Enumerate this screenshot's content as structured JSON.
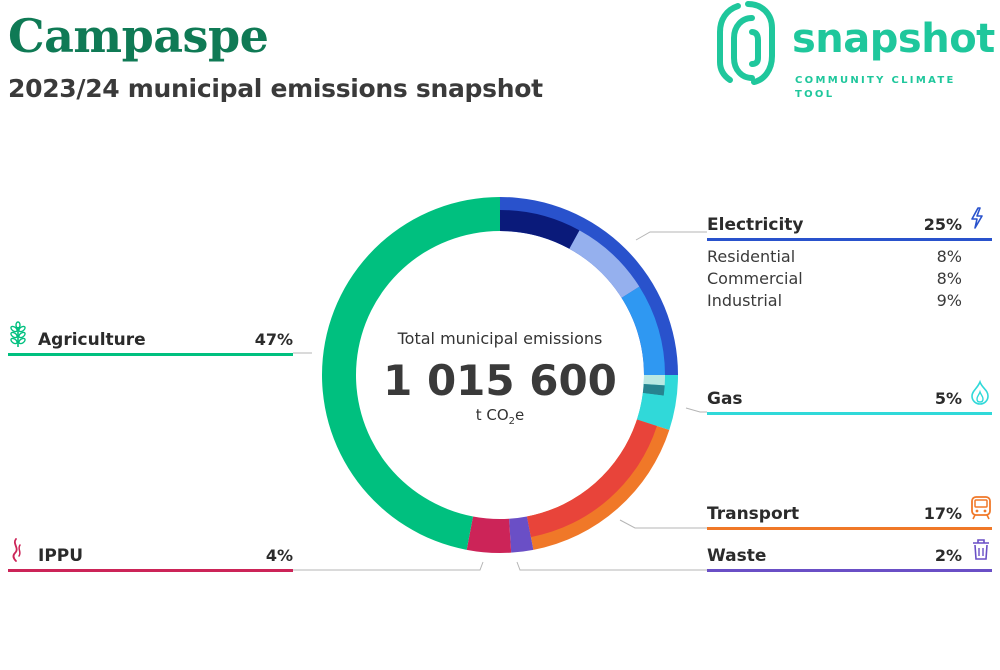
{
  "header": {
    "title": "Campaspe",
    "subtitle": "2023/24 municipal emissions snapshot"
  },
  "brand": {
    "name": "snapshot",
    "tagline": "COMMUNITY CLIMATE TOOL"
  },
  "chart_data": {
    "type": "pie",
    "center": {
      "label": "Total municipal emissions",
      "value": "1 015 600",
      "unit": "t CO",
      "unit_sub": "2",
      "unit_suffix": "e"
    },
    "sectors": [
      {
        "name": "Electricity",
        "percent": 25,
        "label": "25%",
        "color": "#2952cc",
        "icon": "lightning-icon",
        "sub": [
          {
            "name": "Residential",
            "percent": 8,
            "label": "8%",
            "color": "#0a1a7a"
          },
          {
            "name": "Commercial",
            "percent": 8,
            "label": "8%",
            "color": "#95b0ee"
          },
          {
            "name": "Industrial",
            "percent": 9,
            "label": "9%",
            "color": "#2f98f2"
          }
        ]
      },
      {
        "name": "Gas",
        "percent": 5,
        "label": "5%",
        "color": "#30d9d9",
        "icon": "flame-icon",
        "sub": [
          {
            "name": "",
            "percent": 1,
            "color": "#b9e8e2"
          },
          {
            "name": "",
            "percent": 1,
            "color": "#27838f"
          },
          {
            "name": "",
            "percent": 3,
            "color": "#30d9d9"
          }
        ]
      },
      {
        "name": "Transport",
        "percent": 17,
        "label": "17%",
        "color": "#f07828",
        "icon": "train-icon",
        "sub": [
          {
            "name": "",
            "percent": 17,
            "color": "#e8443a"
          }
        ]
      },
      {
        "name": "Waste",
        "percent": 2,
        "label": "2%",
        "color": "#6a4fc6",
        "icon": "bin-icon",
        "sub": []
      },
      {
        "name": "IPPU",
        "percent": 4,
        "label": "4%",
        "color": "#cc2458",
        "icon": "smoke-icon",
        "sub": []
      },
      {
        "name": "Agriculture",
        "percent": 47,
        "label": "47%",
        "color": "#00c07f",
        "icon": "wheat-icon",
        "sub": []
      }
    ]
  }
}
